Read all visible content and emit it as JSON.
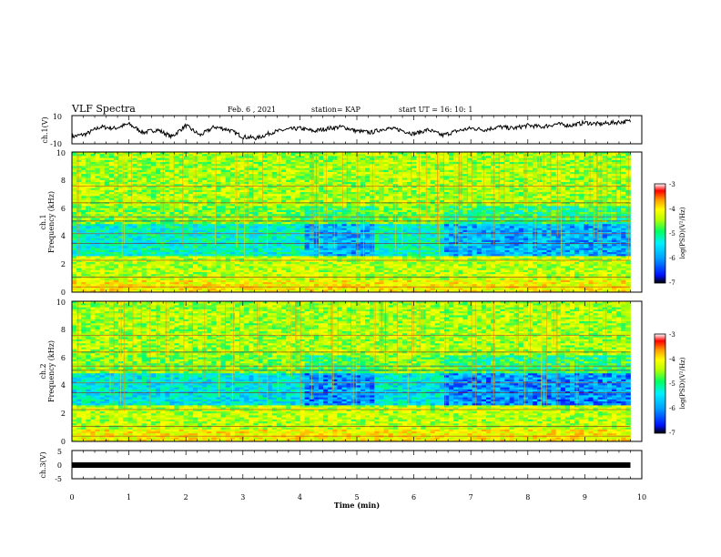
{
  "header": {
    "title": "VLF Spectra",
    "date": "Feb. 6  , 2021",
    "station": "station= KAP",
    "start": "start  UT  =   16: 10: 1"
  },
  "colors": {
    "trace": "#000000",
    "colormap": [
      "#000000",
      "#0018ff",
      "#00a0ff",
      "#00e8ff",
      "#00ff70",
      "#b0ff00",
      "#ffff00",
      "#ff9a00",
      "#ff0000",
      "#ffffff"
    ]
  },
  "chart_data": [
    {
      "type": "line",
      "ylabel": "ch.1(V)",
      "ylim": [
        -10,
        10
      ],
      "y_ticks": [
        "10",
        "-10"
      ],
      "x": [
        0,
        0.25,
        0.5,
        0.75,
        1.0,
        1.25,
        1.5,
        1.75,
        2.0,
        2.25,
        2.5,
        2.75,
        3.0,
        3.25,
        3.5,
        3.75,
        4.0,
        4.25,
        4.5,
        4.75,
        5.0,
        5.25,
        5.5,
        5.75,
        6.0,
        6.25,
        6.5,
        6.75,
        7.0,
        7.25,
        7.5,
        7.75,
        8.0,
        8.25,
        8.5,
        8.75,
        9.0,
        9.25,
        9.5,
        9.8
      ],
      "values": [
        -5,
        -3,
        2,
        1,
        4,
        -2,
        0,
        -5,
        3,
        -4,
        2,
        0,
        -5,
        -6,
        -2,
        0,
        1,
        -1,
        1,
        2,
        -1,
        -2,
        1,
        0,
        -3,
        0,
        -4,
        -1,
        1,
        0,
        2,
        1,
        3,
        2,
        4,
        3,
        5,
        4,
        5,
        6
      ]
    },
    {
      "type": "heatmap",
      "channel": "ch.1",
      "ylabel": "Frequency (kHz)",
      "ylim": [
        0,
        10
      ],
      "y_ticks": [
        "0",
        "2",
        "4",
        "6",
        "8",
        "10"
      ],
      "colorbar": {
        "label": "log(PSD)(V²/Hz)",
        "range": [
          -7,
          -3
        ],
        "ticks": [
          "-3",
          "-4",
          "-5",
          "-6",
          "-7"
        ]
      },
      "segments": [
        0,
        1.15,
        4.1,
        5.3,
        6.55,
        9.8
      ]
    },
    {
      "type": "heatmap",
      "channel": "ch.2",
      "ylabel": "Frequency (kHz)",
      "ylim": [
        0,
        10
      ],
      "y_ticks": [
        "0",
        "2",
        "4",
        "6",
        "8",
        "10"
      ],
      "colorbar": {
        "label": "log(PSD)(V²/Hz)",
        "range": [
          -7,
          -3
        ],
        "ticks": [
          "-3",
          "-4",
          "-5",
          "-6",
          "-7"
        ]
      },
      "segments": [
        0,
        1.15,
        4.1,
        5.3,
        6.55,
        9.8
      ]
    },
    {
      "type": "line",
      "ylabel": "ch.3(V)",
      "ylim": [
        -5,
        5
      ],
      "y_ticks": [
        "5",
        "0",
        "-5"
      ],
      "x": [
        0,
        9.8
      ],
      "values": [
        0,
        0
      ]
    }
  ],
  "xaxis": {
    "label": "Time  (min)",
    "xlim": [
      0,
      10
    ],
    "ticks": [
      "0",
      "1",
      "2",
      "3",
      "4",
      "5",
      "6",
      "7",
      "8",
      "9",
      "10"
    ]
  }
}
